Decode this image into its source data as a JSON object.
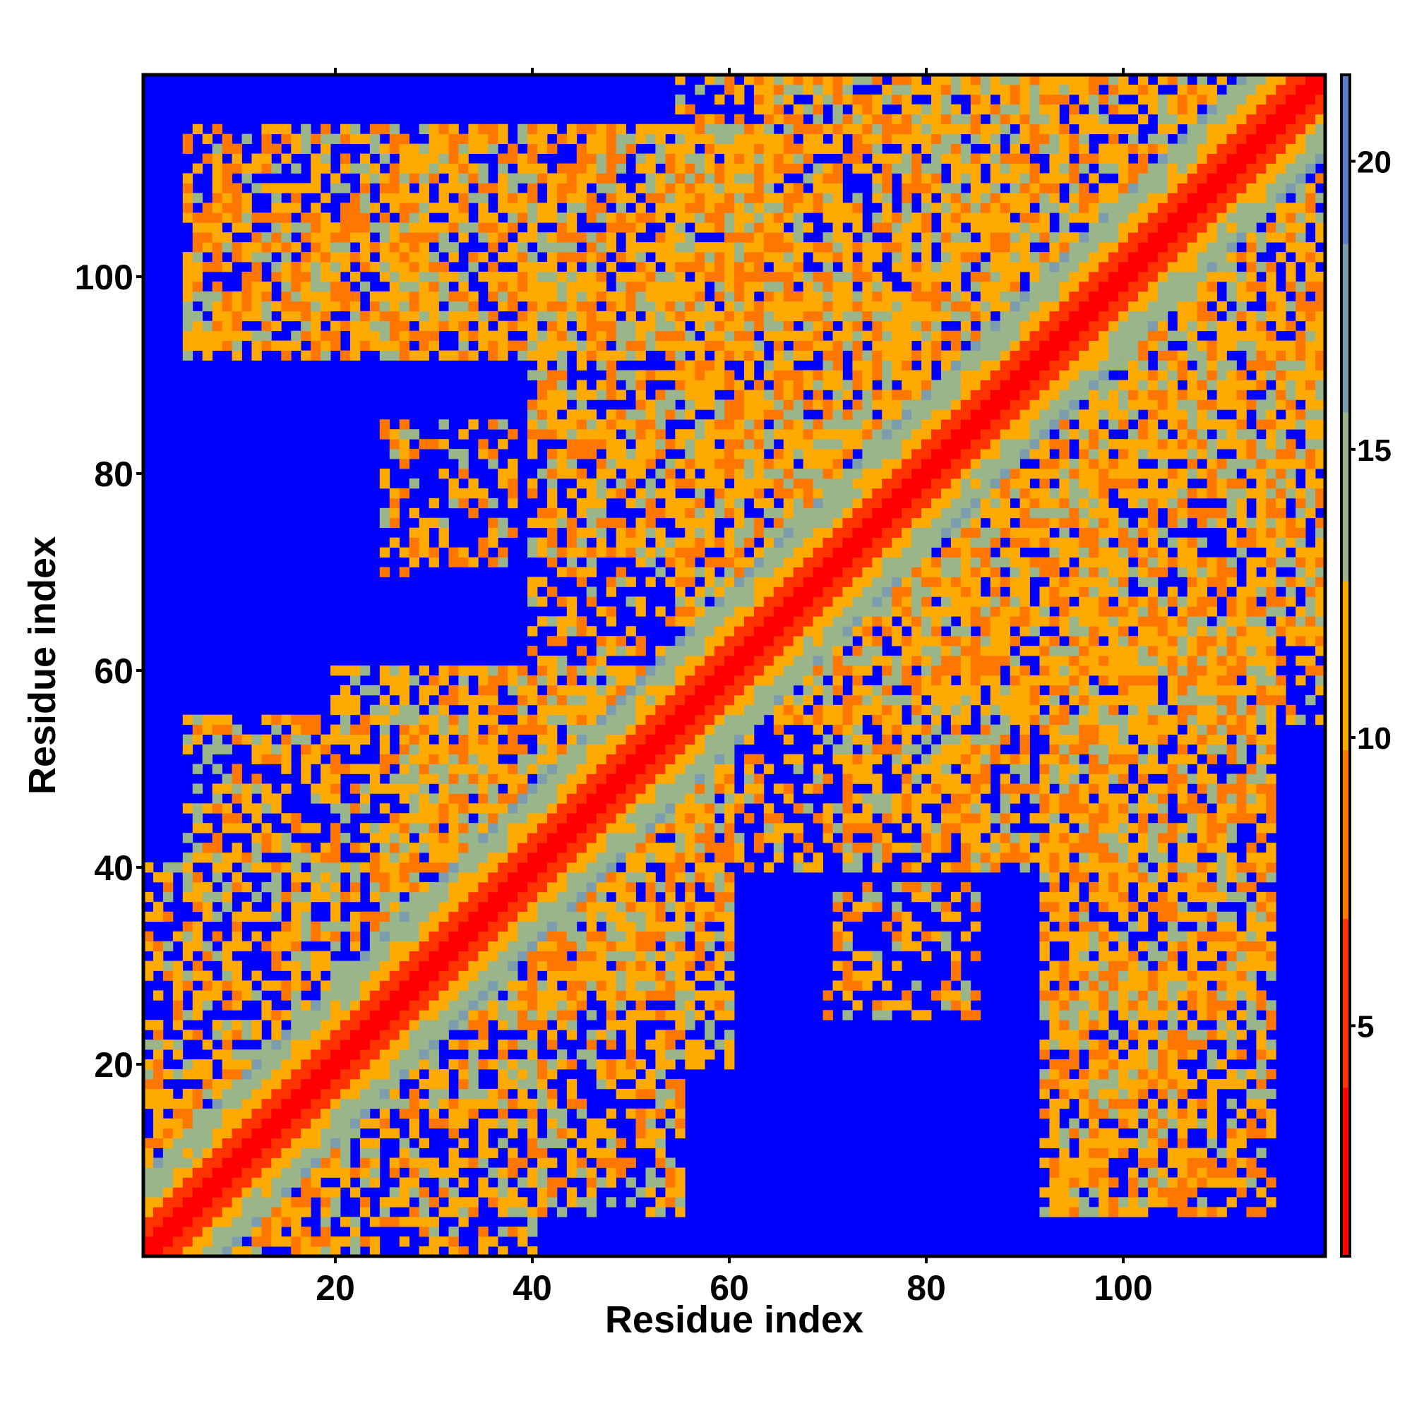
{
  "chart_data": {
    "type": "heatmap",
    "title": "",
    "xlabel": "Residue index",
    "ylabel": "Residue index",
    "xlim": [
      1,
      120
    ],
    "ylim": [
      1,
      120
    ],
    "x_ticks": [
      20,
      40,
      60,
      80,
      100
    ],
    "y_ticks": [
      20,
      40,
      60,
      80,
      100
    ],
    "grid": false,
    "colorbar": {
      "location": "right",
      "range": [
        1,
        21.5
      ],
      "ticks": [
        5,
        10,
        15,
        20
      ],
      "colors": [
        "#ff0000",
        "#ff3300",
        "#ff7700",
        "#ffaa00",
        "#9bb58a",
        "#7c9dad",
        "#5a7fc6"
      ],
      "out_of_range_color": "#0000ff"
    },
    "matrix_description_note": null,
    "diagonal_band": {
      "core_value": 1.5,
      "near_value": 5.5,
      "halo_value": 11
    },
    "contact_regions": [
      {
        "x": [
          1,
          20
        ],
        "y": [
          1,
          20
        ],
        "value": 10.5,
        "density": 0.55
      },
      {
        "x": [
          20,
          40
        ],
        "y": [
          1,
          20
        ],
        "value": 11.5,
        "density": 0.45
      },
      {
        "x": [
          40,
          55
        ],
        "y": [
          5,
          20
        ],
        "value": 11,
        "density": 0.35
      },
      {
        "x": [
          5,
          20
        ],
        "y": [
          28,
          55
        ],
        "value": 11.5,
        "density": 0.35
      },
      {
        "x": [
          25,
          60
        ],
        "y": [
          20,
          60
        ],
        "value": 11,
        "density": 0.6
      },
      {
        "x": [
          40,
          75
        ],
        "y": [
          60,
          90
        ],
        "value": 11,
        "density": 0.5
      },
      {
        "x": [
          25,
          38
        ],
        "y": [
          72,
          85
        ],
        "value": 11,
        "density": 0.25
      },
      {
        "x": [
          5,
          30
        ],
        "y": [
          93,
          107
        ],
        "value": 11,
        "density": 0.5
      },
      {
        "x": [
          25,
          65
        ],
        "y": [
          93,
          115
        ],
        "value": 11,
        "density": 0.55
      },
      {
        "x": [
          65,
          120
        ],
        "y": [
          55,
          120
        ],
        "value": 11,
        "density": 0.55
      },
      {
        "x": [
          70,
          85
        ],
        "y": [
          25,
          38
        ],
        "value": 11,
        "density": 0.25
      },
      {
        "x": [
          92,
          115
        ],
        "y": [
          5,
          62
        ],
        "value": 11,
        "density": 0.55
      },
      {
        "x": [
          72,
          100
        ],
        "y": [
          40,
          55
        ],
        "value": 11,
        "density": 0.45
      }
    ]
  }
}
